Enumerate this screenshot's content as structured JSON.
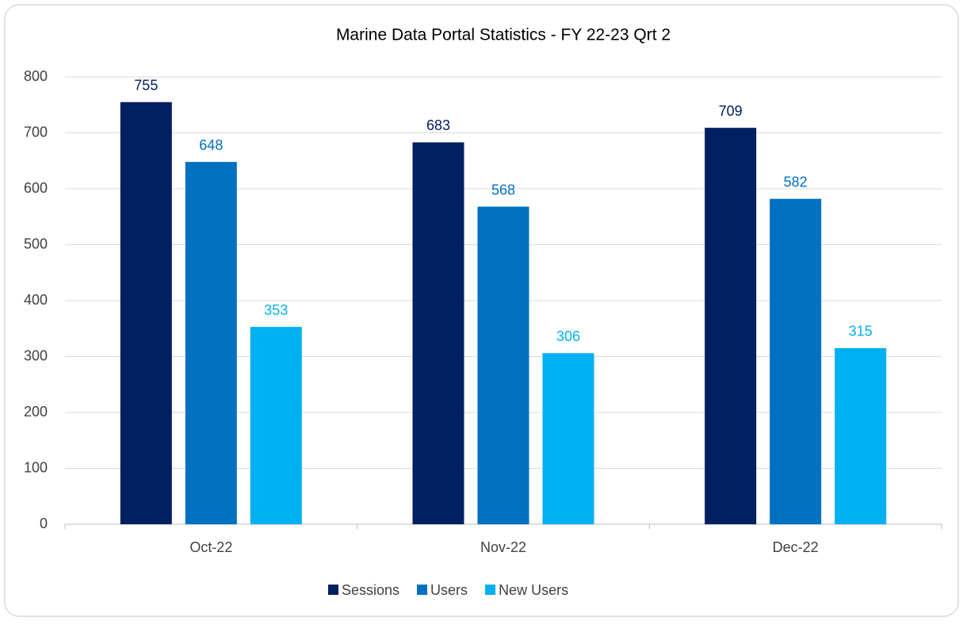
{
  "chart_data": {
    "type": "bar",
    "title": "Marine Data Portal Statistics - FY 22-23 Qrt 2",
    "categories": [
      "Oct-22",
      "Nov-22",
      "Dec-22"
    ],
    "series": [
      {
        "name": "Sessions",
        "color": "#002060",
        "values": [
          755,
          683,
          709
        ]
      },
      {
        "name": "Users",
        "color": "#0070c0",
        "values": [
          648,
          568,
          582
        ]
      },
      {
        "name": "New Users",
        "color": "#00b0f0",
        "values": [
          353,
          306,
          315
        ]
      }
    ],
    "ylim": [
      0,
      800
    ],
    "yticks": [
      0,
      100,
      200,
      300,
      400,
      500,
      600,
      700,
      800
    ],
    "grid": true,
    "legend": "bottom"
  }
}
